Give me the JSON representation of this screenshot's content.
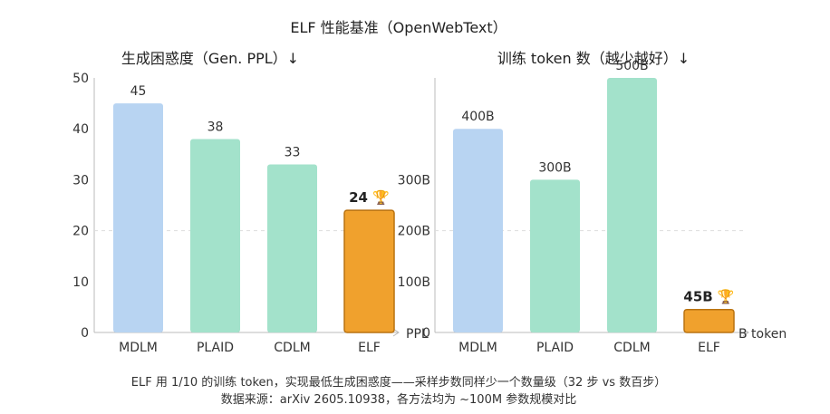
{
  "title": "ELF 性能基准（OpenWebText）",
  "chart_data": [
    {
      "type": "bar",
      "title": "生成困惑度（Gen. PPL）↓",
      "categories": [
        "MDLM",
        "PLAID",
        "CDLM",
        "ELF"
      ],
      "values": [
        45,
        38,
        33,
        24
      ],
      "value_labels": [
        "45",
        "38",
        "33",
        "24 🏆"
      ],
      "colors": [
        "#b8d4f2",
        "#a3e2cb",
        "#a3e2cb",
        "#f0a12d"
      ],
      "highlight": "ELF",
      "ylim": [
        0,
        50
      ],
      "yticks": [
        0,
        10,
        20,
        30,
        40,
        50
      ],
      "ytick_labels": [
        "0",
        "10",
        "20",
        "30",
        "40",
        "50"
      ],
      "unit_label": "PPL",
      "grid": "dashed line at 20"
    },
    {
      "type": "bar",
      "title": "训练 token 数（越少越好）↓",
      "categories": [
        "MDLM",
        "PLAID",
        "CDLM",
        "ELF"
      ],
      "values": [
        400,
        300,
        500,
        45
      ],
      "value_labels": [
        "400B",
        "300B",
        "500B",
        "45B 🏆"
      ],
      "colors": [
        "#b8d4f2",
        "#a3e2cb",
        "#a3e2cb",
        "#f0a12d"
      ],
      "highlight": "ELF",
      "ylim": [
        0,
        500
      ],
      "yticks": [
        0,
        100,
        200,
        300
      ],
      "ytick_labels": [
        "0",
        "100B",
        "200B",
        "300B"
      ],
      "unit_label": "B token",
      "grid": "dashed line at 200"
    }
  ],
  "footer": {
    "line1": "ELF 用 1/10 的训练 token，实现最低生成困惑度——采样步数同样少一个数量级（32 步 vs 数百步）",
    "line2": "数据来源：arXiv 2605.10938，各方法均为 ~100M 参数规模对比"
  }
}
